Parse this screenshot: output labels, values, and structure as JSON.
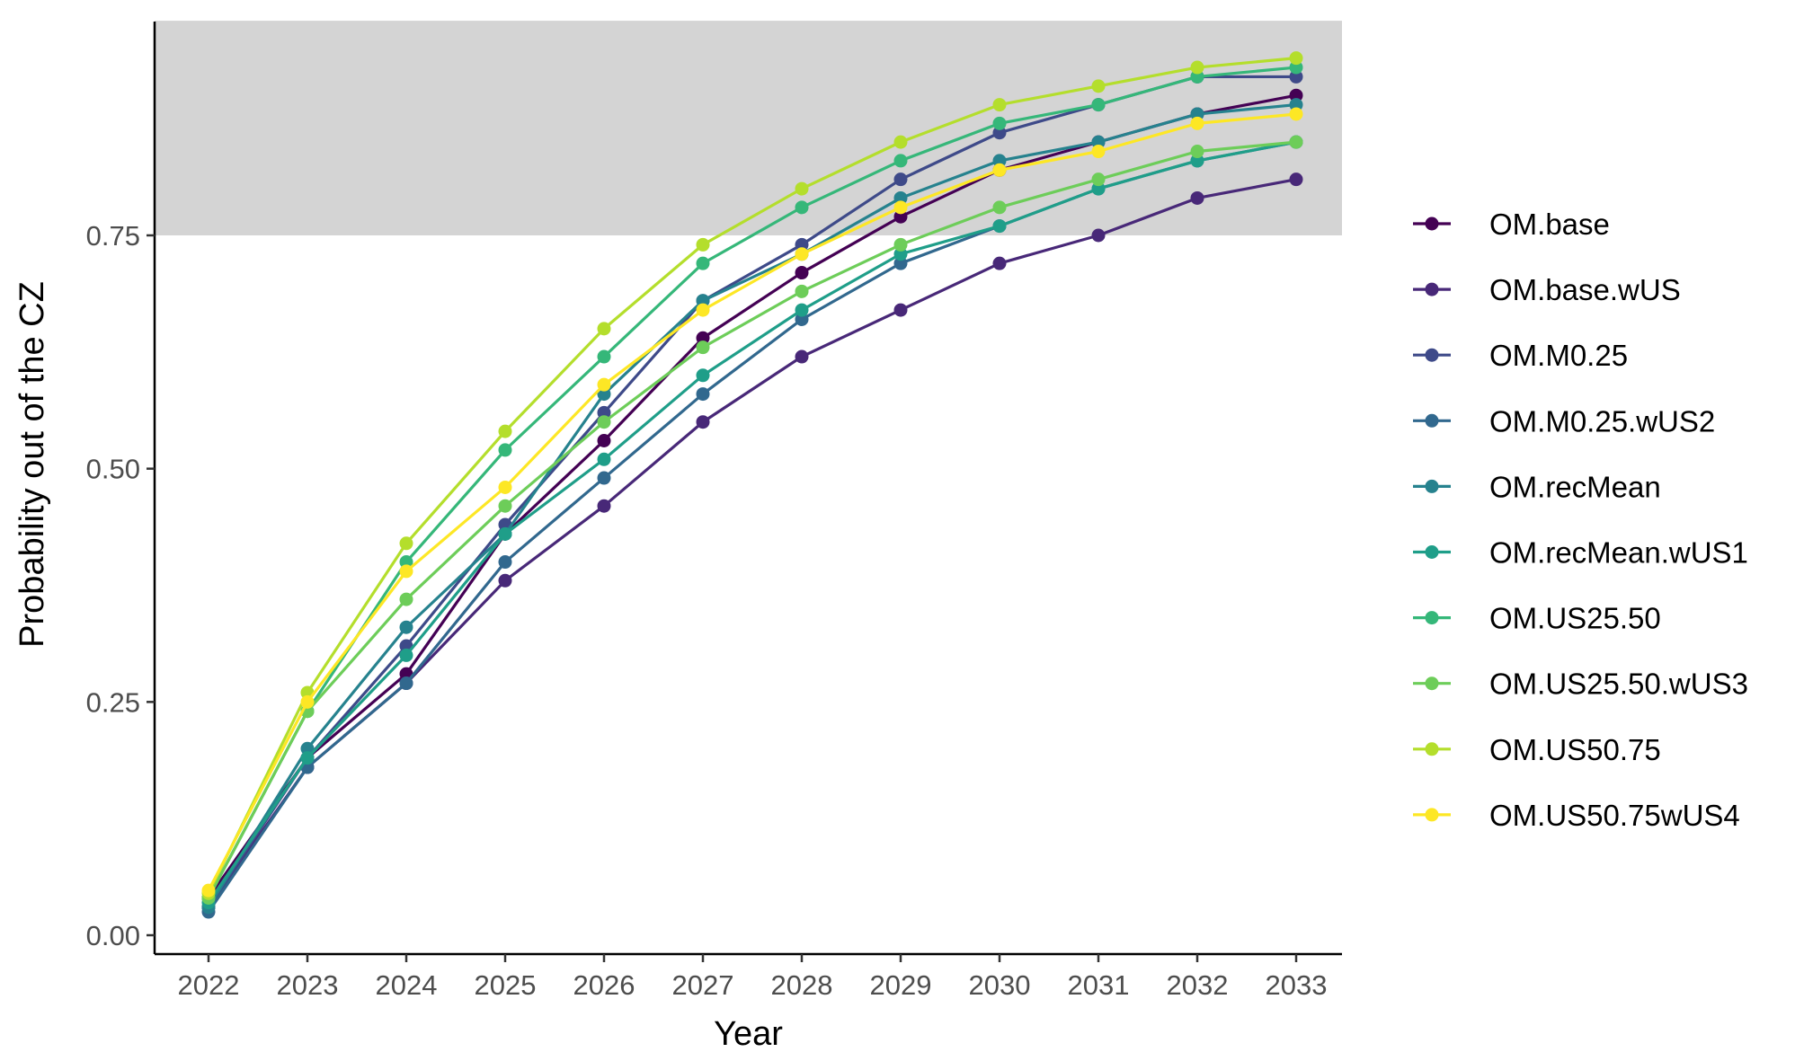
{
  "chart_data": {
    "type": "line",
    "xlabel": "Year",
    "ylabel": "Probability out of the CZ",
    "x": [
      "2022",
      "2023",
      "2024",
      "2025",
      "2026",
      "2027",
      "2028",
      "2029",
      "2030",
      "2031",
      "2032",
      "2033"
    ],
    "ylim": [
      -0.02,
      0.98
    ],
    "y_ticks": [
      "0.00",
      "0.25",
      "0.50",
      "0.75"
    ],
    "y_tick_values": [
      0,
      0.25,
      0.5,
      0.75
    ],
    "shaded_band": {
      "from": 0.75,
      "to": 0.98,
      "color": "#d4d4d4"
    },
    "grid": false,
    "legend_position": "right",
    "series": [
      {
        "name": "OM.base",
        "color": "#440154",
        "values": [
          0.04,
          0.19,
          0.28,
          0.43,
          0.53,
          0.64,
          0.71,
          0.77,
          0.82,
          0.85,
          0.88,
          0.9
        ]
      },
      {
        "name": "OM.base.wUS",
        "color": "#482878",
        "values": [
          0.03,
          0.18,
          0.27,
          0.38,
          0.46,
          0.55,
          0.62,
          0.67,
          0.72,
          0.75,
          0.79,
          0.81
        ]
      },
      {
        "name": "OM.M0.25",
        "color": "#3E4A89",
        "values": [
          0.03,
          0.19,
          0.31,
          0.44,
          0.56,
          0.68,
          0.74,
          0.81,
          0.86,
          0.89,
          0.92,
          0.92
        ]
      },
      {
        "name": "OM.M0.25.wUS2",
        "color": "#31688E",
        "values": [
          0.025,
          0.18,
          0.27,
          0.4,
          0.49,
          0.58,
          0.66,
          0.72,
          0.76,
          0.8,
          0.83,
          0.85
        ]
      },
      {
        "name": "OM.recMean",
        "color": "#26828E",
        "values": [
          0.03,
          0.2,
          0.33,
          0.43,
          0.58,
          0.68,
          0.73,
          0.79,
          0.83,
          0.85,
          0.88,
          0.89
        ]
      },
      {
        "name": "OM.recMean.wUS1",
        "color": "#1F9E89",
        "values": [
          0.035,
          0.19,
          0.3,
          0.43,
          0.51,
          0.6,
          0.67,
          0.73,
          0.76,
          0.8,
          0.83,
          0.85
        ]
      },
      {
        "name": "OM.US25.50",
        "color": "#35B779",
        "values": [
          0.04,
          0.24,
          0.4,
          0.52,
          0.62,
          0.72,
          0.78,
          0.83,
          0.87,
          0.89,
          0.92,
          0.93
        ]
      },
      {
        "name": "OM.US25.50.wUS3",
        "color": "#6DCD59",
        "values": [
          0.04,
          0.24,
          0.36,
          0.46,
          0.55,
          0.63,
          0.69,
          0.74,
          0.78,
          0.81,
          0.84,
          0.85
        ]
      },
      {
        "name": "OM.US50.75",
        "color": "#B4DE2C",
        "values": [
          0.045,
          0.26,
          0.42,
          0.54,
          0.65,
          0.74,
          0.8,
          0.85,
          0.89,
          0.91,
          0.93,
          0.94
        ]
      },
      {
        "name": "OM.US50.75wUS4",
        "color": "#FDE725",
        "values": [
          0.048,
          0.25,
          0.39,
          0.48,
          0.59,
          0.67,
          0.73,
          0.78,
          0.82,
          0.84,
          0.87,
          0.88
        ]
      }
    ]
  }
}
